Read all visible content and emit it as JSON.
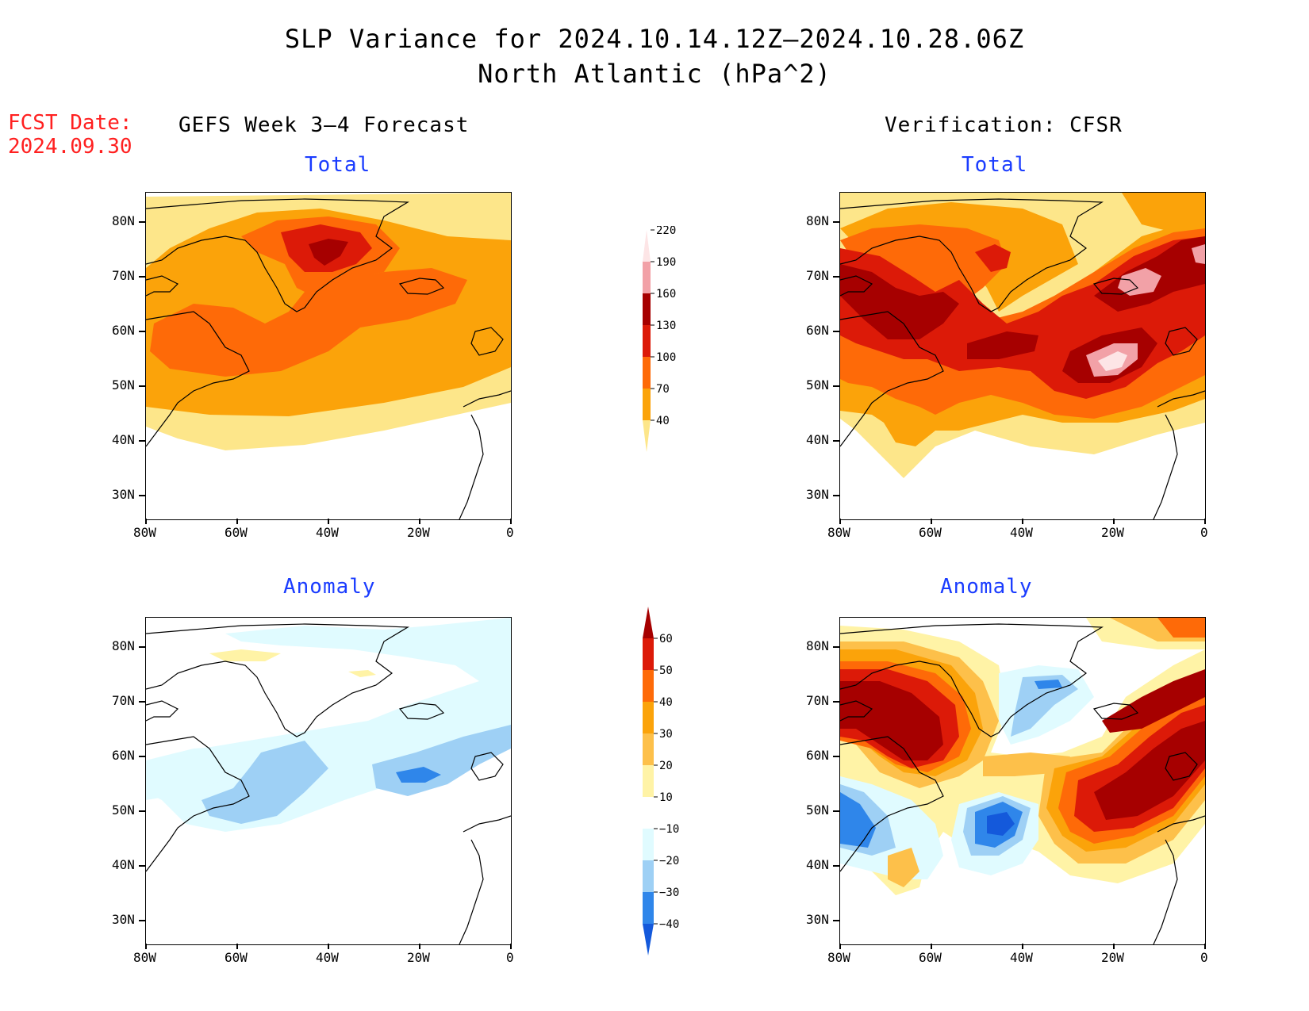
{
  "header": {
    "title_line1": "SLP Variance for 2024.10.14.12Z–2024.10.28.06Z",
    "title_line2": "North Atlantic (hPa^2)"
  },
  "fcst": {
    "label": "FCST Date:",
    "date": "2024.09.30"
  },
  "columns": {
    "left": "GEFS Week 3–4 Forecast",
    "right": "Verification: CFSR"
  },
  "panels": {
    "total": "Total",
    "anomaly": "Anomaly"
  },
  "axes": {
    "lat_labels": [
      "80N",
      "70N",
      "60N",
      "50N",
      "40N",
      "30N"
    ],
    "lon_labels": [
      "80W",
      "60W",
      "40W",
      "20W",
      "0"
    ]
  },
  "colorbars": {
    "total": {
      "levels": [
        "40",
        "70",
        "100",
        "130",
        "160",
        "190",
        "220"
      ],
      "colors": [
        "#fde68a",
        "#fba30a",
        "#fe6a08",
        "#dc1a08",
        "#a60000",
        "#f2a1a7",
        "#fde5e6"
      ]
    },
    "anomaly": {
      "levels": [
        "−40",
        "−30",
        "−20",
        "−10",
        "10",
        "20",
        "30",
        "40",
        "50",
        "60"
      ],
      "colors": [
        "#1459db",
        "#2f86ea",
        "#9ed0f5",
        "#e0fbff",
        "#ffffff",
        "#fff3a6",
        "#fdc04a",
        "#fba30a",
        "#fe6a08",
        "#dc1a08",
        "#a60000"
      ]
    }
  }
}
